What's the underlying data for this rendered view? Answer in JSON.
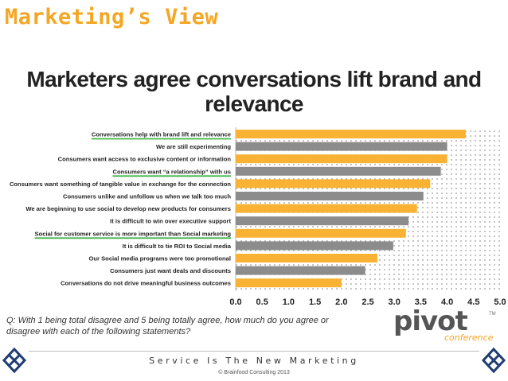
{
  "slide": {
    "title": "Marketing’s View",
    "question": "Q: With 1 being total disagree and 5 being totally agree, how much do you agree or disagree with each of the following statements?",
    "logo_word": "pivot",
    "logo_sub": "conference",
    "logo_tm": "TM"
  },
  "footer": {
    "tagline": "Service Is The New Marketing",
    "copyright": "© Brainfood Consulting 2013"
  },
  "colors": {
    "title": "#f5a623",
    "bar_orange": "#f9b233",
    "bar_gray": "#8c8c8c",
    "highlight_underline": "#3fb549",
    "corner_logo": "#1f3d73"
  },
  "chart_data": {
    "type": "bar",
    "orientation": "horizontal",
    "title": "Marketers agree conversations lift brand and relevance",
    "categories": [
      "Conversations help with brand lift and relevance",
      "We are still experimenting",
      "Consumers want access to exclusive content or information",
      "Consumers want “a relationship” with us",
      "Consumers want something of tangible value in exchange for the connection",
      "Consumers unlike and unfollow us when we talk too much",
      "We are beginning to use social to develop new products for consumers",
      "It is difficult to win over executive support",
      "Social for customer service is more important than Social marketing",
      "It is difficult to tie ROI to Social media",
      "Our Social media programs were too promotional",
      "Consumers just want deals and discounts",
      "Conversations do not drive meaningful business outcomes"
    ],
    "values": [
      4.35,
      4.0,
      4.0,
      3.88,
      3.68,
      3.55,
      3.43,
      3.27,
      3.22,
      2.98,
      2.68,
      2.45,
      2.0
    ],
    "bar_colors": [
      "orange",
      "gray",
      "orange",
      "gray",
      "orange",
      "gray",
      "orange",
      "gray",
      "orange",
      "gray",
      "orange",
      "gray",
      "orange"
    ],
    "underlined": [
      true,
      false,
      false,
      true,
      false,
      false,
      false,
      false,
      true,
      false,
      false,
      false,
      false
    ],
    "xlim": [
      0,
      5
    ],
    "xticks": [
      "0.0",
      "0.5",
      "1.0",
      "1.5",
      "2.0",
      "2.5",
      "3.0",
      "3.5",
      "4.0",
      "4.5",
      "5.0"
    ],
    "xlabel": "",
    "ylabel": "",
    "grid": "dotted background"
  }
}
